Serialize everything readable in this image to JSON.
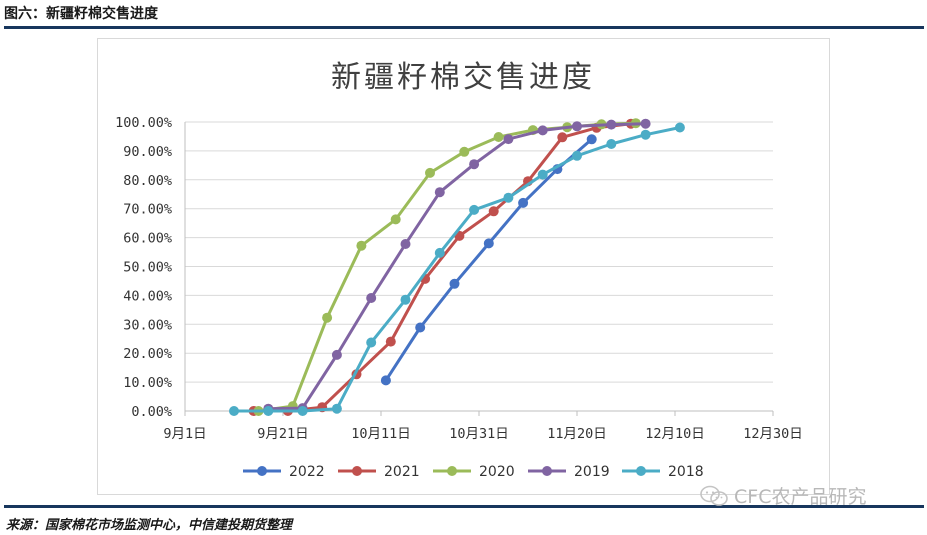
{
  "header": {
    "figure_title": "图六：新疆籽棉交售进度"
  },
  "footer": {
    "source": "来源：国家棉花市场监测中心，中信建投期货整理"
  },
  "watermark": {
    "text": "CFC农产品研究",
    "icon": "wechat-icon"
  },
  "chart_data": {
    "type": "line",
    "title": "新疆籽棉交售进度",
    "xlabel": "",
    "ylabel": "",
    "x_ticks": [
      "9月1日",
      "9月21日",
      "10月11日",
      "10月31日",
      "11月20日",
      "12月10日",
      "12月30日"
    ],
    "xlim_days": [
      0,
      120
    ],
    "ylim": [
      0,
      100
    ],
    "y_ticks": [
      "0.00%",
      "10.00%",
      "20.00%",
      "30.00%",
      "40.00%",
      "50.00%",
      "60.00%",
      "70.00%",
      "80.00%",
      "90.00%",
      "100.00%"
    ],
    "grid": "horizontal",
    "legend_position": "bottom",
    "series": [
      {
        "name": "2022",
        "color": "#4472c4",
        "x": [
          "10月12日",
          "10月19日",
          "10月26日",
          "11月2日",
          "11月9日",
          "11月16日",
          "11月23日"
        ],
        "y": [
          10.6,
          28.9,
          44,
          58,
          72,
          83.7,
          94
        ]
      },
      {
        "name": "2021",
        "color": "#c0504d",
        "x": [
          "9月15日",
          "9月22日",
          "9月29日",
          "10月6日",
          "10月13日",
          "10月20日",
          "10月27日",
          "11月3日",
          "11月10日",
          "11月17日",
          "11月24日",
          "12月1日"
        ],
        "y": [
          0,
          0,
          1.3,
          12.7,
          24,
          45.7,
          60.6,
          69.1,
          79.5,
          94.7,
          98,
          99.4
        ]
      },
      {
        "name": "2020",
        "color": "#9bbb59",
        "x": [
          "9月16日",
          "9月23日",
          "9月30日",
          "10月7日",
          "10月14日",
          "10月21日",
          "10月28日",
          "11月4日",
          "11月11日",
          "11月18日",
          "11月25日",
          "12月2日"
        ],
        "y": [
          0,
          1.7,
          32.3,
          57.2,
          66.3,
          82.4,
          89.7,
          94.8,
          97.2,
          98.2,
          99.2,
          99.6
        ]
      },
      {
        "name": "2019",
        "color": "#8064a2",
        "x": [
          "9月18日",
          "9月25日",
          "10月2日",
          "10月9日",
          "10月16日",
          "10月23日",
          "10月30日",
          "11月6日",
          "11月13日",
          "11月20日",
          "11月27日",
          "12月4日"
        ],
        "y": [
          0.8,
          1,
          19.4,
          39.1,
          57.8,
          75.7,
          85.4,
          94.1,
          97.1,
          98.5,
          99.1,
          99.4
        ]
      },
      {
        "name": "2018",
        "color": "#4bacc6",
        "x": [
          "9月11日",
          "9月18日",
          "9月25日",
          "10月2日",
          "10月9日",
          "10月16日",
          "10月23日",
          "10月30日",
          "11月6日",
          "11月13日",
          "11月20日",
          "11月27日",
          "12月4日",
          "12月11日"
        ],
        "y": [
          0,
          0,
          0,
          0.8,
          23.7,
          38.5,
          54.7,
          69.6,
          73.8,
          81.8,
          88.3,
          92.4,
          95.6,
          98.1
        ]
      }
    ]
  }
}
